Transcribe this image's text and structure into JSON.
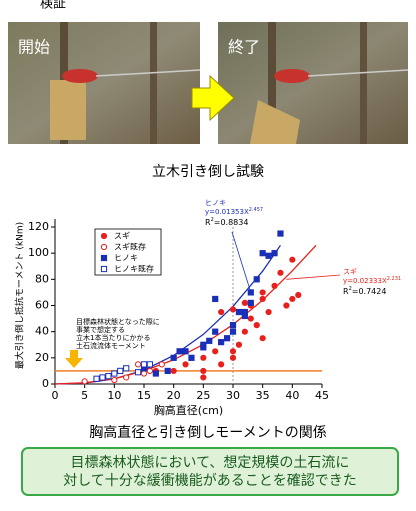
{
  "header": {
    "title": "検証"
  },
  "photos": {
    "start_label": "開始",
    "end_label": "終了",
    "caption": "立木引き倒し試験"
  },
  "chart_data": {
    "type": "scatter",
    "x_label": "胸高直径(cm)",
    "y_label": "最大引き倒し抵抗モーメント (kNm)",
    "xlim": [
      0,
      45
    ],
    "xticks": [
      0,
      5,
      10,
      15,
      20,
      25,
      30,
      35,
      40,
      45
    ],
    "ylim": [
      0,
      120
    ],
    "yticks": [
      0,
      20,
      40,
      60,
      80,
      100,
      120
    ],
    "vline_x": 30,
    "series": [
      {
        "name": "スギ",
        "color": "#e8201c",
        "marker": "circle",
        "filled": true,
        "x": [
          17,
          20,
          22,
          25,
          25,
          25,
          27,
          28,
          28,
          30,
          30,
          30,
          31,
          32,
          32,
          32,
          33,
          33,
          34,
          35,
          35,
          35,
          36,
          37,
          38,
          39,
          40,
          40,
          41
        ],
        "values": [
          10,
          10,
          15,
          20,
          5,
          10,
          25,
          15,
          55,
          20,
          25,
          57,
          30,
          40,
          55,
          62,
          50,
          60,
          45,
          65,
          70,
          35,
          55,
          75,
          85,
          60,
          95,
          65,
          68
        ]
      },
      {
        "name": "スギ既存",
        "color": "#e8201c",
        "marker": "circle",
        "filled": false,
        "x": [
          5,
          10,
          12,
          14,
          15,
          16,
          18
        ],
        "values": [
          2,
          3,
          5,
          15,
          8,
          10,
          15
        ]
      },
      {
        "name": "ヒノキ",
        "color": "#1a2fb8",
        "marker": "square",
        "filled": true,
        "x": [
          15,
          17,
          19,
          20,
          21,
          22,
          23,
          25,
          25,
          26,
          27,
          27,
          28,
          29,
          30,
          30,
          31,
          32,
          32,
          33,
          33,
          34,
          35,
          36,
          37,
          38
        ],
        "values": [
          12,
          8,
          10,
          20,
          25,
          25,
          20,
          30,
          28,
          33,
          40,
          65,
          32,
          35,
          45,
          40,
          55,
          55,
          52,
          62,
          70,
          80,
          100,
          98,
          100,
          115
        ]
      },
      {
        "name": "ヒノキ既存",
        "color": "#1a2fb8",
        "marker": "square",
        "filled": false,
        "x": [
          7,
          8,
          9,
          10,
          11,
          12,
          14,
          15,
          16
        ],
        "values": [
          4,
          5,
          6,
          8,
          10,
          12,
          9,
          15,
          15
        ]
      }
    ],
    "fits": [
      {
        "name": "ヒノキ",
        "color": "#1a2fb8",
        "equation": "y=0.01353X",
        "exponent": "2.457",
        "r2_label": "R",
        "r2_exp": "2",
        "r2_value": "=0.8834",
        "x": [
          0,
          5,
          10,
          15,
          20,
          25,
          30,
          35,
          38
        ],
        "values": [
          0,
          0.7,
          3.9,
          10.6,
          21.8,
          37.9,
          59.3,
          86.3,
          106
        ]
      },
      {
        "name": "スギ",
        "color": "#e8201c",
        "equation": "y=0.02333X",
        "exponent": "2.231",
        "r2_label": "R",
        "r2_exp": "2",
        "r2_value": "=0.7424",
        "x": [
          0,
          5,
          10,
          15,
          20,
          25,
          30,
          35,
          40,
          44
        ],
        "values": [
          0,
          0.9,
          4,
          10,
          18.5,
          30.2,
          45.4,
          64.1,
          86.5,
          106
        ]
      }
    ],
    "reference_line": {
      "y": 10,
      "color": "#f07f2a",
      "label": [
        "目標森林状態となった際に",
        "事業で想定する",
        "立木1本当たりにかかる",
        "土石流流体モーメント"
      ]
    },
    "caption": "胸高直径と引き倒しモーメントの関係"
  },
  "conclusion": {
    "lines": [
      "目標森林状態において、想定規模の土石流に",
      "対して十分な緩衝機能があることを確認できた"
    ]
  }
}
